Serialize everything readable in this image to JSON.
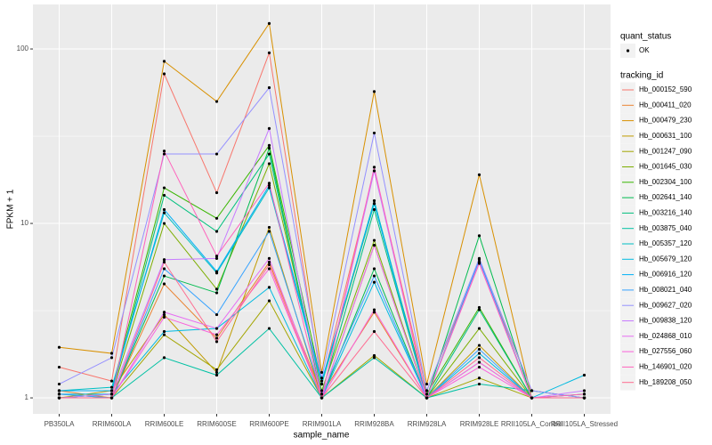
{
  "chart_data": {
    "type": "line",
    "xlabel": "sample_name",
    "ylabel": "FPKM + 1",
    "log_y": true,
    "grid": true,
    "categories": [
      "PB350LA",
      "RRIM600LA",
      "RRIM600LE",
      "RRIM600SE",
      "RRIM600PE",
      "RRIM901LA",
      "RRIM928BA",
      "RRIM928LA",
      "RRIM928LE",
      "RRII105LA_Control",
      "RRII105LA_Stressed"
    ],
    "ylim": [
      0.81,
      180
    ],
    "yticks": [
      1,
      10,
      100
    ],
    "point_legend": {
      "title": "quant_status",
      "labels": [
        "OK"
      ],
      "color": "#000000"
    },
    "legend_title": "tracking_id",
    "legend_position": "right",
    "series": [
      {
        "name": "Hb_000152_590",
        "color": "#F8766D",
        "values": [
          1.5,
          1.25,
          72,
          15,
          95,
          1.2,
          20,
          1.1,
          6,
          1.1,
          1.0
        ]
      },
      {
        "name": "Hb_000411_020",
        "color": "#EA8331",
        "values": [
          1.1,
          1.0,
          4.5,
          2.2,
          6,
          1.05,
          3.1,
          1.0,
          1.6,
          1.0,
          1.0
        ]
      },
      {
        "name": "Hb_000479_230",
        "color": "#D89000",
        "values": [
          1.95,
          1.8,
          85,
          50,
          140,
          1.4,
          57,
          1.2,
          19,
          1.0,
          1.0
        ]
      },
      {
        "name": "Hb_000631_100",
        "color": "#C09B00",
        "values": [
          1.0,
          1.1,
          3.0,
          1.4,
          9.5,
          1.0,
          7.5,
          1.0,
          2.0,
          1.0,
          1.0
        ]
      },
      {
        "name": "Hb_001247_090",
        "color": "#A3A500",
        "values": [
          1.05,
          1.0,
          2.3,
          1.45,
          3.6,
          1.0,
          1.75,
          1.0,
          1.3,
          1.0,
          1.0
        ]
      },
      {
        "name": "Hb_001645_030",
        "color": "#7CAE00",
        "values": [
          1.0,
          1.05,
          10,
          4.2,
          22,
          1.1,
          8,
          1.0,
          2.5,
          1.0,
          1.0
        ]
      },
      {
        "name": "Hb_002304_100",
        "color": "#39B600",
        "values": [
          1.1,
          1.1,
          16,
          10.7,
          28,
          1.2,
          13,
          1.05,
          3.3,
          1.0,
          1.0
        ]
      },
      {
        "name": "Hb_002641_140",
        "color": "#00BB4E",
        "values": [
          1.0,
          1.0,
          5,
          4,
          27,
          1.0,
          5.5,
          1.0,
          8.5,
          1.0,
          1.05
        ]
      },
      {
        "name": "Hb_003216_140",
        "color": "#00BF7D",
        "values": [
          1.0,
          1.05,
          14.5,
          9,
          25,
          1.05,
          12,
          1.0,
          3.2,
          1.0,
          1.0
        ]
      },
      {
        "name": "Hb_003875_040",
        "color": "#00C1A3",
        "values": [
          1.0,
          1.0,
          1.7,
          1.35,
          2.5,
          1.0,
          1.7,
          1.0,
          1.2,
          1.1,
          1.0
        ]
      },
      {
        "name": "Hb_005357_120",
        "color": "#00BFC4",
        "values": [
          1.1,
          1.15,
          11.5,
          5.2,
          16,
          1.2,
          13.5,
          1.0,
          6,
          1.0,
          1.0
        ]
      },
      {
        "name": "Hb_005679_120",
        "color": "#00BAE0",
        "values": [
          1.05,
          1.05,
          2.4,
          2.5,
          4.3,
          1.0,
          4.6,
          1.0,
          1.8,
          1.0,
          1.35
        ]
      },
      {
        "name": "Hb_006916_120",
        "color": "#00B0F6",
        "values": [
          1.1,
          1.1,
          12,
          5.3,
          16.5,
          1.25,
          13,
          1.0,
          6.2,
          1.0,
          1.0
        ]
      },
      {
        "name": "Hb_008021_040",
        "color": "#35A2FF",
        "values": [
          1.05,
          1.0,
          5.5,
          3,
          9,
          1.05,
          5,
          1.0,
          1.9,
          1.0,
          1.0
        ]
      },
      {
        "name": "Hb_009627_020",
        "color": "#9590FF",
        "values": [
          1.2,
          1.7,
          25,
          25,
          60,
          1.3,
          33,
          1.1,
          6.3,
          1.1,
          1.0
        ]
      },
      {
        "name": "Hb_009838_120",
        "color": "#C77CFF",
        "values": [
          1.0,
          1.05,
          6.2,
          6.3,
          35,
          1.0,
          20,
          1.0,
          6,
          1.0,
          1.1
        ]
      },
      {
        "name": "Hb_024868_010",
        "color": "#E76BF3",
        "values": [
          1.0,
          1.0,
          3.1,
          2.5,
          6.3,
          1.0,
          7.5,
          1.0,
          1.6,
          1.0,
          1.0
        ]
      },
      {
        "name": "Hb_027556_060",
        "color": "#FA62DB",
        "values": [
          1.0,
          1.0,
          2.9,
          2.3,
          5.5,
          1.0,
          3.2,
          1.0,
          1.5,
          1.0,
          1.0
        ]
      },
      {
        "name": "Hb_146901_020",
        "color": "#FF62BC",
        "values": [
          1.0,
          1.0,
          26,
          6.5,
          17,
          1.0,
          21,
          1.0,
          5.9,
          1.0,
          1.05
        ]
      },
      {
        "name": "Hb_189208_050",
        "color": "#FF6C91",
        "values": [
          1.0,
          1.0,
          6.0,
          2.1,
          5.8,
          1.0,
          2.4,
          1.0,
          1.7,
          1.0,
          1.0
        ]
      }
    ]
  }
}
